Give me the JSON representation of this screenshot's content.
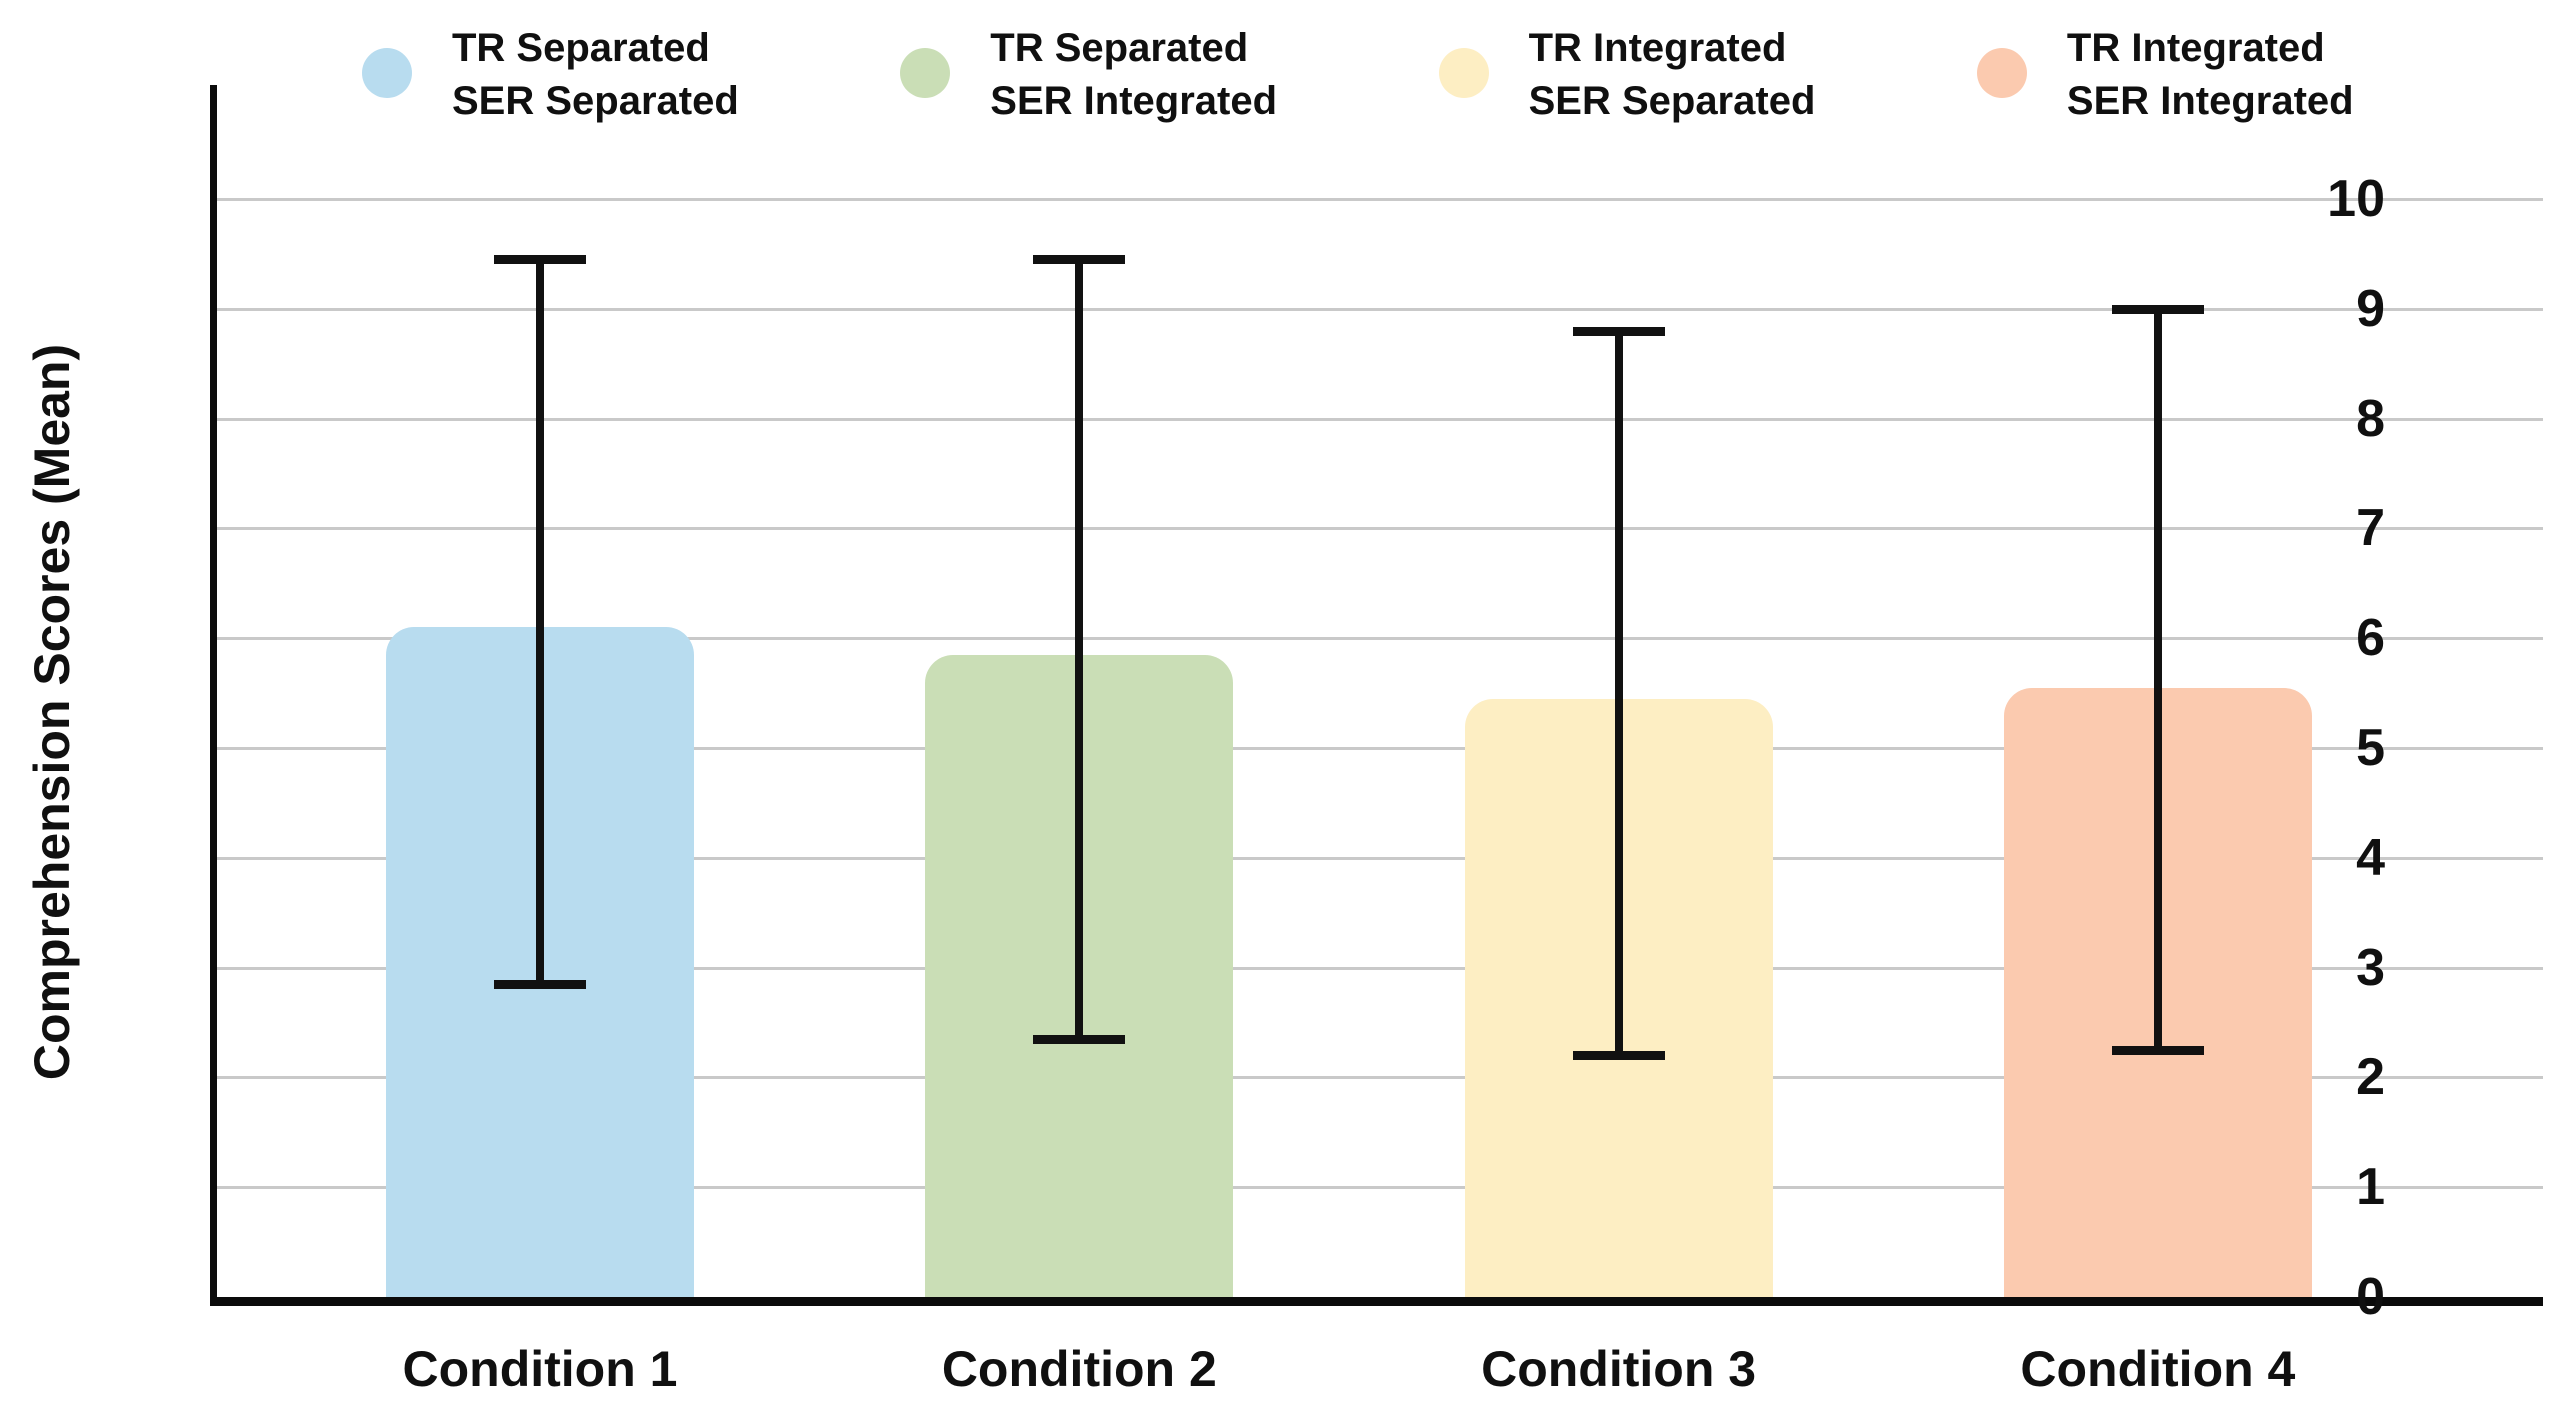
{
  "chart_data": {
    "type": "bar",
    "title": "",
    "categories": [
      "Condition 1",
      "Condition 2",
      "Condition 3",
      "Condition 4"
    ],
    "values": [
      6.1,
      5.85,
      5.45,
      5.55
    ],
    "error_low": [
      2.85,
      2.35,
      2.2,
      2.25
    ],
    "error_high": [
      9.45,
      9.45,
      8.8,
      9.0
    ],
    "bar_colors": [
      "#b8dcef",
      "#cadeb6",
      "#fdeec3",
      "#fbcaaf"
    ],
    "xlabel": "",
    "ylabel": "Comprehension Scores (Mean)",
    "ylim": [
      0,
      10
    ],
    "yticks": [
      0,
      1,
      2,
      3,
      4,
      5,
      6,
      7,
      8,
      9,
      10
    ],
    "grid": true,
    "legend_position": "top",
    "legend": [
      {
        "lines": [
          "TR Separated",
          "SER Separated"
        ],
        "color": "#b8dcef"
      },
      {
        "lines": [
          "TR Separated",
          "SER Integrated"
        ],
        "color": "#cadeb6"
      },
      {
        "lines": [
          "TR Integrated",
          "SER Separated"
        ],
        "color": "#fdeec3"
      },
      {
        "lines": [
          "TR Integrated",
          "SER Integrated"
        ],
        "color": "#fbcaaf"
      }
    ],
    "error_bar_color": "#111111",
    "axis_color": "#0b0b0b",
    "gridline_color": "#c9c9c9"
  }
}
